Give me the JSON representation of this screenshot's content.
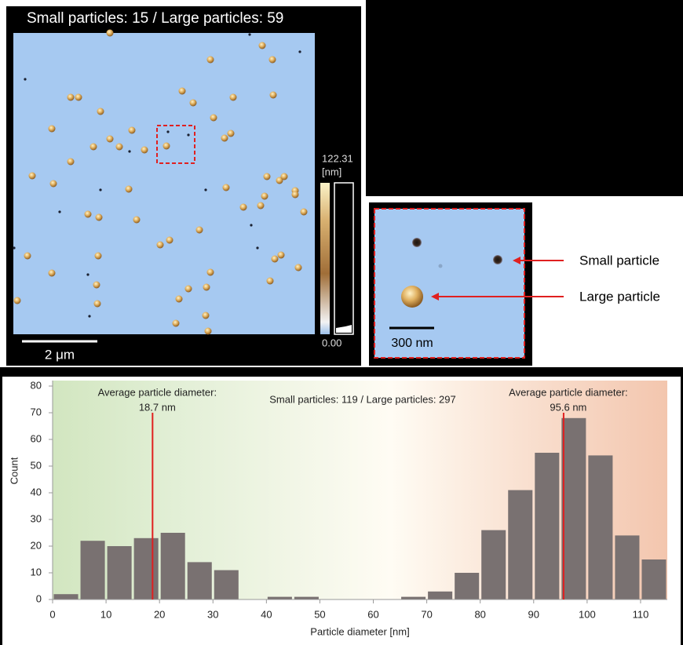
{
  "panel_title": "Small particles: 15 / Large particles: 59",
  "afm_image": {
    "scale_bar": "2 μm",
    "colorbar": {
      "max": "122.31",
      "unit": "[nm]",
      "min": "0.00"
    }
  },
  "inset": {
    "scale_bar": "300 nm",
    "labels": [
      "Small particle",
      "Large particle"
    ]
  },
  "chart_data": {
    "type": "histogram",
    "subtitle": "Small particles: 119 / Large particles: 297",
    "xlabel": "Particle diameter [nm]",
    "ylabel": "Count",
    "bins": [
      0,
      5,
      10,
      15,
      20,
      25,
      30,
      35,
      40,
      45,
      50,
      55,
      60,
      65,
      70,
      75,
      80,
      85,
      90,
      95,
      100,
      105,
      110,
      115
    ],
    "values": [
      2,
      22,
      20,
      23,
      25,
      14,
      11,
      0,
      1,
      1,
      0,
      0,
      0,
      1,
      3,
      10,
      26,
      41,
      55,
      68,
      54,
      24,
      15
    ],
    "color": "#797171",
    "xlim": [
      0,
      115
    ],
    "ylim": [
      0,
      80
    ],
    "xticks": [
      0,
      10,
      20,
      30,
      40,
      50,
      60,
      70,
      80,
      90,
      100,
      110
    ],
    "yticks": [
      0,
      10,
      20,
      30,
      40,
      50,
      60,
      70,
      80
    ],
    "annotations": [
      {
        "x": 18.7,
        "text": "Average particle diameter:",
        "label": "18.7 nm",
        "color": "#e02020"
      },
      {
        "x": 95.6,
        "text": "Average particle diameter:",
        "label": "95.6 nm",
        "color": "#e02020"
      }
    ]
  }
}
